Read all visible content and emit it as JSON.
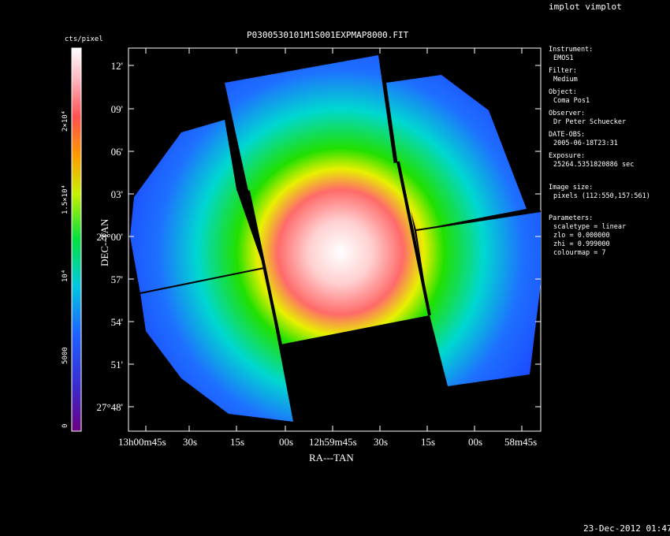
{
  "window_title": "implot vimplot",
  "plot_title": "P0300530101M1S001EXPMAP8000.FIT",
  "timestamp": "23-Dec-2012 01:47",
  "colorbar": {
    "unit": "cts/pixel",
    "ticks": [
      "0",
      "5000",
      "10⁴",
      "1.5×10⁴",
      "2×10⁴"
    ]
  },
  "axes": {
    "xlabel": "RA---TAN",
    "ylabel": "DEC--TAN",
    "y_ticks": [
      "12'",
      "09'",
      "06'",
      "03'",
      "28°00'",
      "57'",
      "54'",
      "51'",
      "27°48'"
    ],
    "x_ticks": [
      "13h00m45s",
      "30s",
      "15s",
      "00s",
      "12h59m45s",
      "30s",
      "15s",
      "00s",
      "58m45s"
    ]
  },
  "info": [
    {
      "label": "Instrument:",
      "value": "EMOS1"
    },
    {
      "label": "Filter:",
      "value": "Medium"
    },
    {
      "label": "Object:",
      "value": "Coma Pos1"
    },
    {
      "label": "Observer:",
      "value": "Dr Peter Schuecker"
    },
    {
      "label": "DATE-OBS:",
      "value": "2005-06-18T23:31"
    },
    {
      "label": "Exposure:",
      "value": "25264.5351820886 sec"
    },
    {
      "label": "Image size:",
      "value": "pixels (112:550,157:561)"
    }
  ],
  "parameters": {
    "label": "Parameters:",
    "lines": [
      "scaletype = linear",
      "zlo = 0.000000",
      "zhi = 0.999000",
      "colourmap =   7"
    ]
  },
  "colors": {
    "background": "#000000",
    "text": "#ffffff",
    "peak": "#ffffff",
    "edge": "#1a3cff"
  }
}
